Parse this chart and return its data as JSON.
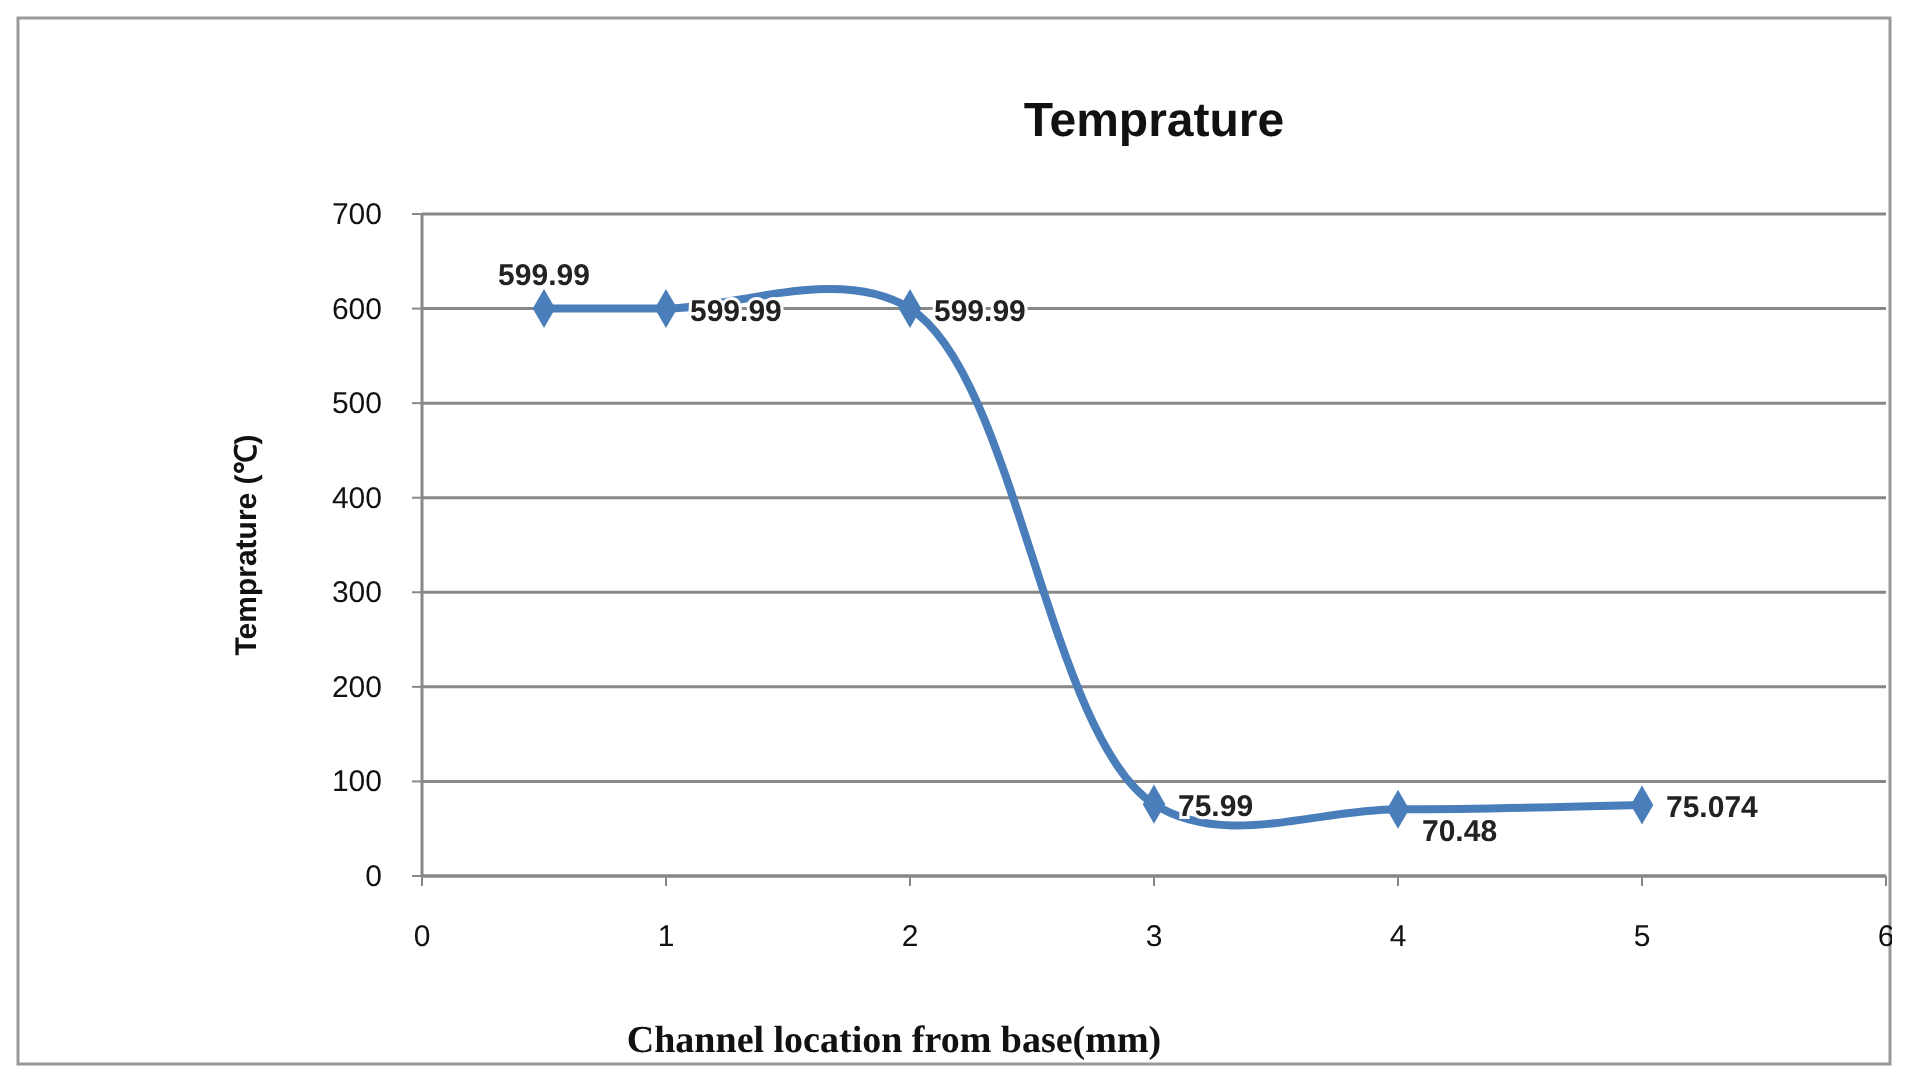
{
  "chart_data": {
    "type": "line",
    "title": "Temprature",
    "xlabel": "Channel location from base(mm)",
    "ylabel": "Temprature (℃)",
    "x": [
      0.5,
      1,
      2,
      3,
      4,
      5
    ],
    "series": [
      {
        "color": "#4a7ebb",
        "values": [
          599.99,
          599.99,
          599.99,
          75.99,
          70.48,
          75.074
        ]
      }
    ],
    "xlim": [
      0,
      6
    ],
    "xticks": [
      0,
      1,
      2,
      3,
      4,
      5,
      6
    ],
    "ylim": [
      0,
      700
    ],
    "yticks": [
      0,
      100,
      200,
      300,
      400,
      500,
      600,
      700
    ],
    "grid": "y",
    "marker": "diamond",
    "line_style": "solid",
    "data_labels": true
  }
}
